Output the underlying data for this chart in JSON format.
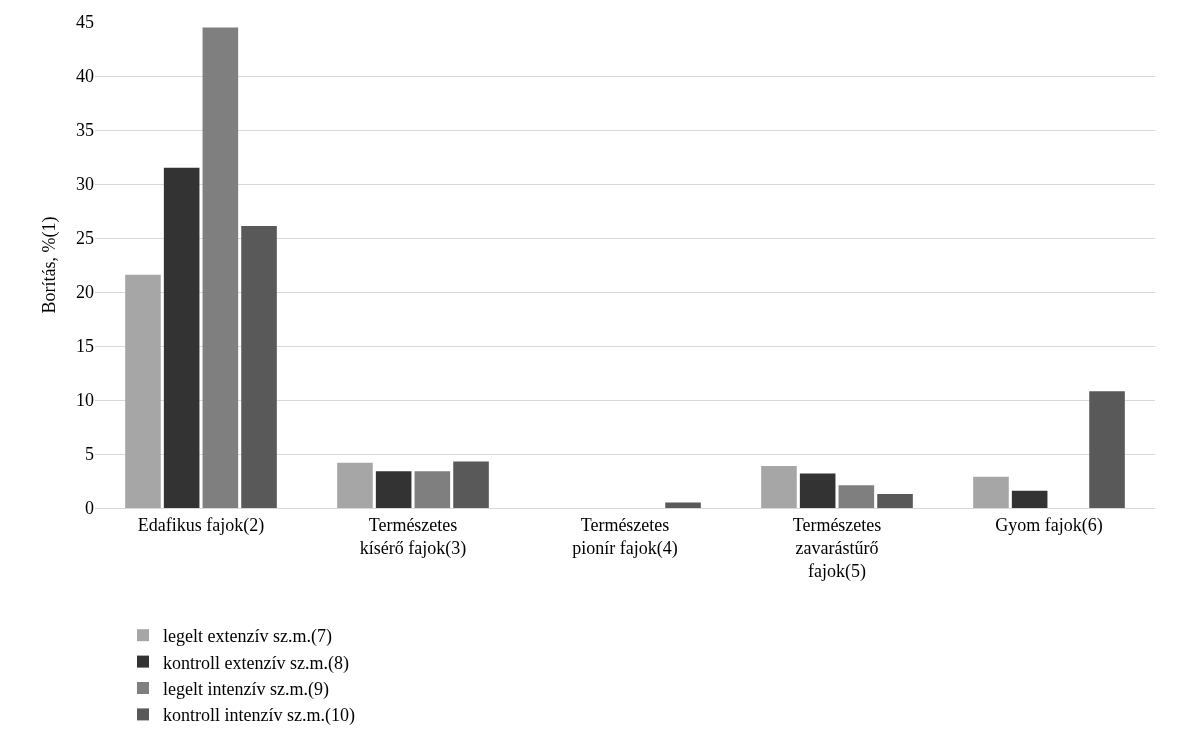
{
  "chart_data": {
    "type": "bar",
    "ylabel": "Borítás, %(1)",
    "categories": [
      "Edafikus fajok(2)",
      "Természetes\nkísérő fajok(3)",
      "Természetes\npionír fajok(4)",
      "Természetes\nzavarástűrő\nfajok(5)",
      "Gyom fajok(6)"
    ],
    "series": [
      {
        "name": "legelt extenzív sz.m.(7)",
        "color": "#a6a6a6",
        "values": [
          21.6,
          4.2,
          0,
          3.9,
          2.9
        ]
      },
      {
        "name": "kontroll extenzív sz.m.(8)",
        "color": "#333333",
        "values": [
          31.5,
          3.4,
          0,
          3.2,
          1.6
        ]
      },
      {
        "name": "legelt intenzív sz.m.(9)",
        "color": "#7f7f7f",
        "values": [
          44.5,
          3.4,
          0,
          2.1,
          0
        ]
      },
      {
        "name": "kontroll intenzív sz.m.(10)",
        "color": "#595959",
        "values": [
          26.1,
          4.3,
          0.5,
          1.3,
          10.8
        ]
      }
    ],
    "ylim": [
      0,
      45
    ],
    "yticks": [
      0,
      5,
      10,
      15,
      20,
      25,
      30,
      35,
      40,
      45
    ],
    "grid": "y",
    "legend": "bottom"
  }
}
